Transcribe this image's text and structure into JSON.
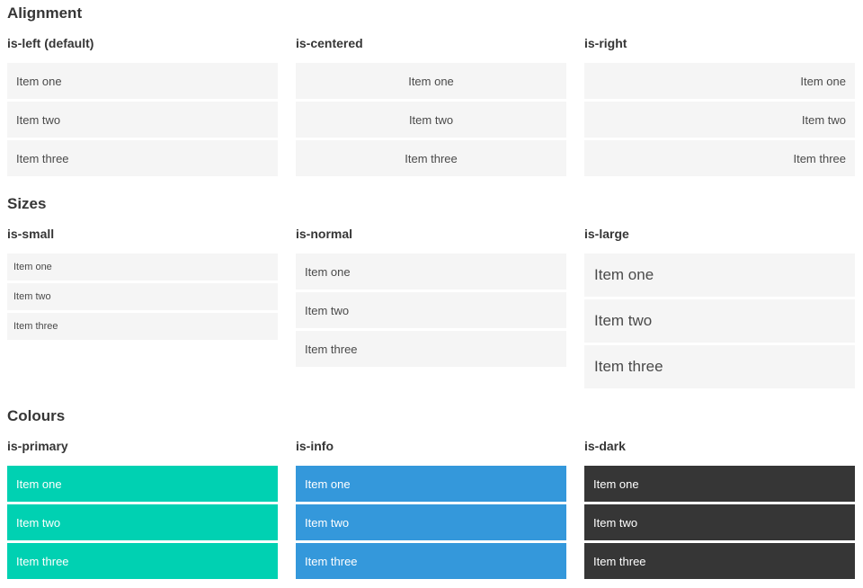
{
  "colors": {
    "primary": "#00d1b2",
    "info": "#3498db",
    "dark": "#363636",
    "light": "#f5f5f5",
    "text": "#4a4a4a",
    "heading": "#363636",
    "on-color": "#ffffff"
  },
  "sections": [
    {
      "title": "Alignment",
      "columns": [
        {
          "heading": "is-left (default)",
          "variant": "align-left",
          "items": [
            "Item one",
            "Item two",
            "Item three"
          ]
        },
        {
          "heading": "is-centered",
          "variant": "align-center",
          "items": [
            "Item one",
            "Item two",
            "Item three"
          ]
        },
        {
          "heading": "is-right",
          "variant": "align-right",
          "items": [
            "Item one",
            "Item two",
            "Item three"
          ]
        }
      ]
    },
    {
      "title": "Sizes",
      "columns": [
        {
          "heading": "is-small",
          "variant": "size-small",
          "items": [
            "Item one",
            "Item two",
            "Item three"
          ]
        },
        {
          "heading": "is-normal",
          "variant": "size-normal",
          "items": [
            "Item one",
            "Item two",
            "Item three"
          ]
        },
        {
          "heading": "is-large",
          "variant": "size-large",
          "items": [
            "Item one",
            "Item two",
            "Item three"
          ]
        }
      ]
    },
    {
      "title": "Colours",
      "columns": [
        {
          "heading": "is-primary",
          "variant": "color-primary",
          "items": [
            "Item one",
            "Item two",
            "Item three"
          ]
        },
        {
          "heading": "is-info",
          "variant": "color-info",
          "items": [
            "Item one",
            "Item two",
            "Item three"
          ]
        },
        {
          "heading": "is-dark",
          "variant": "color-dark",
          "items": [
            "Item one",
            "Item two",
            "Item three"
          ]
        }
      ]
    }
  ]
}
